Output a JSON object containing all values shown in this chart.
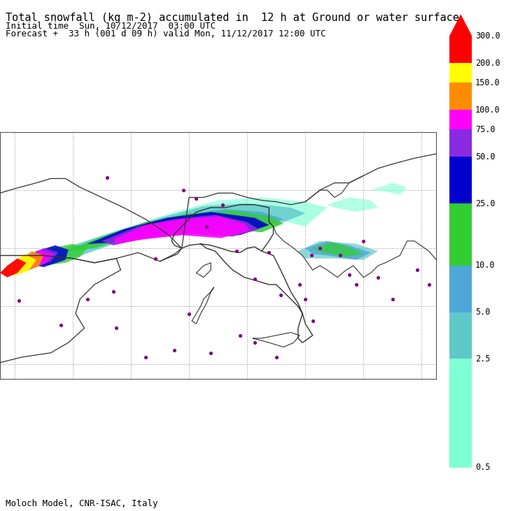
{
  "title_line1": "Total snowfall (kg m-2) accumulated in  12 h at Ground or water surface",
  "title_line2": "Initial time  Sun, 10/12/2017  03:00 UTC",
  "title_line3": "Forecast +  33 h (001 d 09 h) valid Mon, 11/12/2017 12:00 UTC",
  "footer": "Moloch Model, CNR-ISAC, Italy",
  "bg_color": "#ffffff",
  "title_fontsize": 11,
  "subtitle_fontsize": 9,
  "band_colors": [
    "#7fffd4",
    "#5fc8c8",
    "#4da8d8",
    "#32cd32",
    "#0000cd",
    "#8a2be2",
    "#ff00ff",
    "#ff8c00",
    "#ffff00",
    "#ff0000"
  ],
  "colorbar_labels": [
    "300.0",
    "200.0",
    "150.0",
    "100.0",
    "75.0",
    "50.0",
    "25.0",
    "10.0",
    "5.0",
    "2.5",
    "0.5"
  ],
  "colorbar_log_vals": [
    -0.693,
    0.916,
    1.609,
    2.303,
    3.219,
    3.912,
    4.317,
    4.605,
    5.011,
    5.298,
    5.704
  ],
  "city_lons": [
    -3.7,
    -0.8,
    2.35,
    2.8,
    4.9,
    5.7,
    7.6,
    8.5,
    9.2,
    10.3,
    11.25,
    12.5,
    13.5,
    14.3,
    15.6,
    16.4,
    17.0,
    18.4,
    19.0,
    21.0,
    22.0,
    23.7,
    24.5,
    1.0,
    3.0,
    5.0,
    7.0,
    9.5,
    11.5,
    14.0,
    16.5,
    19.5,
    8.0,
    12.5,
    16.0,
    20.0
  ],
  "city_lats": [
    40.4,
    38.7,
    48.85,
    41.0,
    52.3,
    43.3,
    48.0,
    47.4,
    45.5,
    47.0,
    43.8,
    41.9,
    43.7,
    40.8,
    41.5,
    43.5,
    44.0,
    43.5,
    42.2,
    42.0,
    40.5,
    42.5,
    41.5,
    40.5,
    38.5,
    36.5,
    37.0,
    36.8,
    38.0,
    36.5,
    39.0,
    41.5,
    39.5,
    37.5,
    40.5,
    44.5
  ]
}
